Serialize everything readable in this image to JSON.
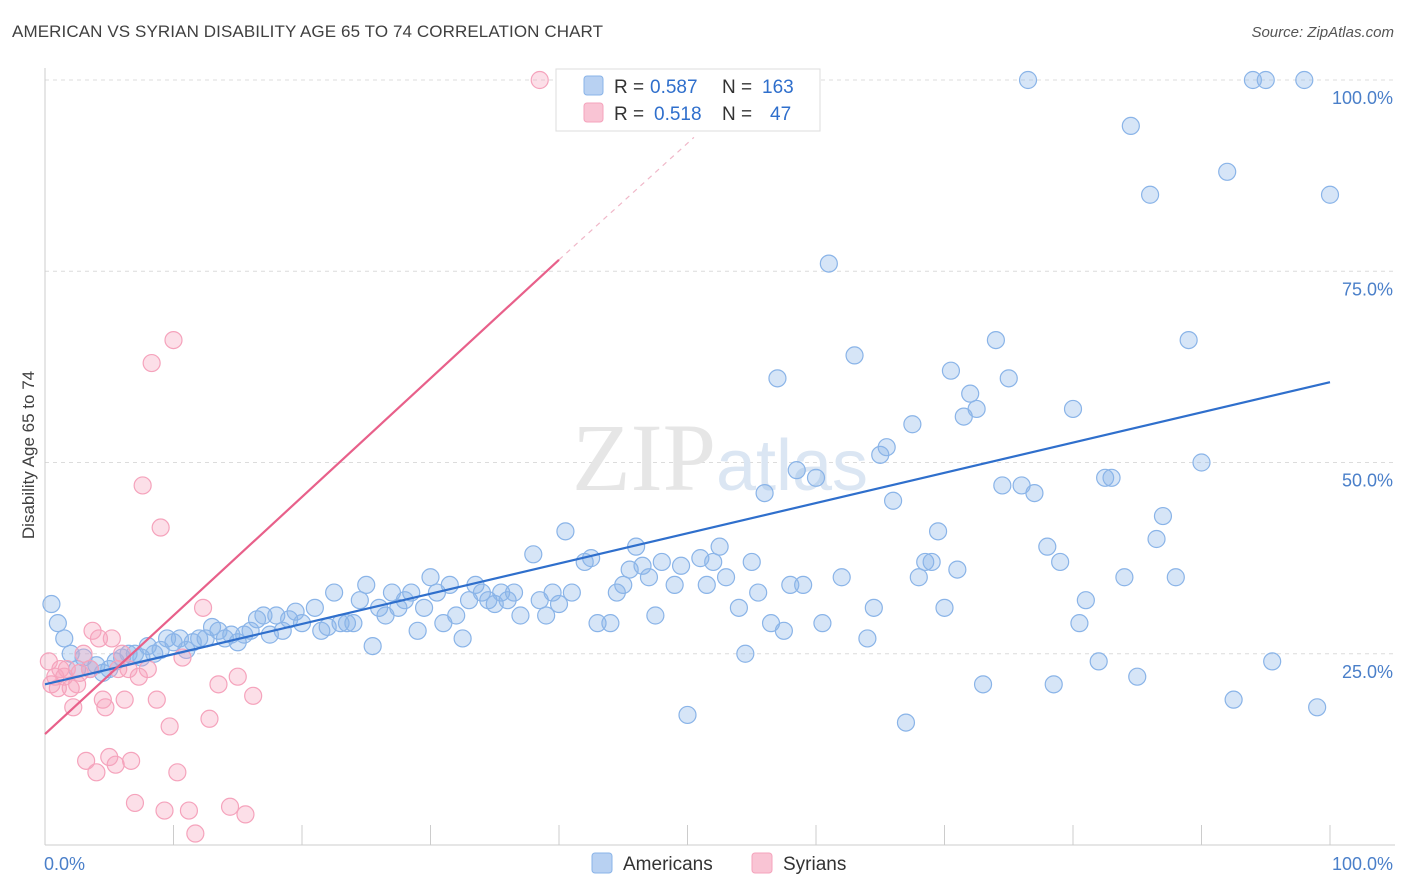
{
  "title": "AMERICAN VS SYRIAN DISABILITY AGE 65 TO 74 CORRELATION CHART",
  "source": "Source: ZipAtlas.com",
  "watermark": "ZIPatlas",
  "chart_data": {
    "type": "scatter",
    "xlabel": "",
    "ylabel": "Disability Age 65 to 74",
    "xlim": [
      0,
      100
    ],
    "ylim": [
      0,
      100
    ],
    "x_tick_labels": [
      "0.0%",
      "100.0%"
    ],
    "y_ticks": [
      {
        "value": 25,
        "label": "25.0%"
      },
      {
        "value": 50,
        "label": "50.0%"
      },
      {
        "value": 75,
        "label": "75.0%"
      },
      {
        "value": 100,
        "label": "100.0%"
      }
    ],
    "grid": true,
    "legend": {
      "placement": "top-center",
      "entries": [
        {
          "r_label": "R =",
          "r_value": "0.587",
          "n_label": "N =",
          "n_value": "163"
        },
        {
          "r_label": "R =",
          "r_value": "0.518",
          "n_label": "N =",
          "n_value": "47"
        }
      ]
    },
    "series": [
      {
        "name": "Americans",
        "color": "#8ab4e8",
        "line_color": "#2f6fcc",
        "trend": {
          "x": [
            0,
            100
          ],
          "y": [
            21,
            60.5
          ]
        },
        "points": [
          [
            0.5,
            31.5
          ],
          [
            1,
            29
          ],
          [
            1.5,
            27
          ],
          [
            2,
            25
          ],
          [
            2.5,
            23
          ],
          [
            3,
            24.5
          ],
          [
            3.5,
            23
          ],
          [
            4,
            23.5
          ],
          [
            4.5,
            22.5
          ],
          [
            5,
            23
          ],
          [
            5.5,
            24
          ],
          [
            6,
            24.5
          ],
          [
            6.5,
            25
          ],
          [
            7,
            25
          ],
          [
            7.5,
            24.5
          ],
          [
            8,
            26
          ],
          [
            8.5,
            25
          ],
          [
            9,
            25.5
          ],
          [
            9.5,
            27
          ],
          [
            10,
            26.5
          ],
          [
            10.5,
            27
          ],
          [
            11,
            25.5
          ],
          [
            11.5,
            26.5
          ],
          [
            12,
            27
          ],
          [
            12.5,
            27
          ],
          [
            13,
            28.5
          ],
          [
            13.5,
            28
          ],
          [
            14,
            27
          ],
          [
            14.5,
            27.5
          ],
          [
            15,
            26.5
          ],
          [
            15.5,
            27.5
          ],
          [
            16,
            28
          ],
          [
            16.5,
            29.5
          ],
          [
            17,
            30
          ],
          [
            17.5,
            27.5
          ],
          [
            18,
            30
          ],
          [
            18.5,
            28
          ],
          [
            19,
            29.5
          ],
          [
            19.5,
            30.5
          ],
          [
            20,
            29
          ],
          [
            21,
            31
          ],
          [
            21.5,
            28
          ],
          [
            22,
            28.5
          ],
          [
            22.5,
            33
          ],
          [
            23,
            29
          ],
          [
            23.5,
            29
          ],
          [
            24,
            29
          ],
          [
            24.5,
            32
          ],
          [
            25,
            34
          ],
          [
            25.5,
            26
          ],
          [
            26,
            31
          ],
          [
            26.5,
            30
          ],
          [
            27,
            33
          ],
          [
            27.5,
            31
          ],
          [
            28,
            32
          ],
          [
            28.5,
            33
          ],
          [
            29,
            28
          ],
          [
            29.5,
            31
          ],
          [
            30,
            35
          ],
          [
            30.5,
            33
          ],
          [
            31,
            29
          ],
          [
            31.5,
            34
          ],
          [
            32,
            30
          ],
          [
            32.5,
            27
          ],
          [
            33,
            32
          ],
          [
            33.5,
            34
          ],
          [
            34,
            33
          ],
          [
            34.5,
            32
          ],
          [
            35,
            31.5
          ],
          [
            35.5,
            33
          ],
          [
            36,
            32
          ],
          [
            36.5,
            33
          ],
          [
            37,
            30
          ],
          [
            38,
            38
          ],
          [
            38.5,
            32
          ],
          [
            39,
            30
          ],
          [
            39.5,
            33
          ],
          [
            40,
            31.5
          ],
          [
            40.5,
            41
          ],
          [
            41,
            33
          ],
          [
            42,
            37
          ],
          [
            42.5,
            37.5
          ],
          [
            43,
            29
          ],
          [
            44,
            29
          ],
          [
            44.5,
            33
          ],
          [
            45,
            34
          ],
          [
            45.5,
            36
          ],
          [
            46,
            39
          ],
          [
            46.5,
            36.5
          ],
          [
            47,
            35
          ],
          [
            47.5,
            30
          ],
          [
            48,
            37
          ],
          [
            49,
            34
          ],
          [
            49.5,
            36.5
          ],
          [
            50,
            17
          ],
          [
            51,
            37.5
          ],
          [
            51.5,
            34
          ],
          [
            52,
            37
          ],
          [
            52.5,
            39
          ],
          [
            53,
            35
          ],
          [
            54,
            31
          ],
          [
            54.5,
            25
          ],
          [
            55,
            37
          ],
          [
            55.5,
            33
          ],
          [
            56,
            46
          ],
          [
            56.5,
            29
          ],
          [
            57,
            61
          ],
          [
            57.5,
            28
          ],
          [
            58,
            34
          ],
          [
            58.5,
            49
          ],
          [
            59,
            34
          ],
          [
            60,
            48
          ],
          [
            60.5,
            29
          ],
          [
            61,
            76
          ],
          [
            62,
            35
          ],
          [
            63,
            64
          ],
          [
            64,
            27
          ],
          [
            64.5,
            31
          ],
          [
            65,
            51
          ],
          [
            65.5,
            52
          ],
          [
            66,
            45
          ],
          [
            67,
            16
          ],
          [
            67.5,
            55
          ],
          [
            68,
            35
          ],
          [
            68.5,
            37
          ],
          [
            69,
            37
          ],
          [
            69.5,
            41
          ],
          [
            70,
            31
          ],
          [
            70.5,
            62
          ],
          [
            71,
            36
          ],
          [
            71.5,
            56
          ],
          [
            72,
            59
          ],
          [
            72.5,
            57
          ],
          [
            73,
            21
          ],
          [
            74,
            66
          ],
          [
            74.5,
            47
          ],
          [
            75,
            61
          ],
          [
            76,
            47
          ],
          [
            76.5,
            100
          ],
          [
            77,
            46
          ],
          [
            78,
            39
          ],
          [
            78.5,
            21
          ],
          [
            79,
            37
          ],
          [
            80,
            57
          ],
          [
            80.5,
            29
          ],
          [
            81,
            32
          ],
          [
            82,
            24
          ],
          [
            82.5,
            48
          ],
          [
            83,
            48
          ],
          [
            84,
            35
          ],
          [
            84.5,
            94
          ],
          [
            85,
            22
          ],
          [
            86,
            85
          ],
          [
            86.5,
            40
          ],
          [
            87,
            43
          ],
          [
            88,
            35
          ],
          [
            89,
            66
          ],
          [
            90,
            50
          ],
          [
            92,
            88
          ],
          [
            92.5,
            19
          ],
          [
            94,
            100
          ],
          [
            95,
            100
          ],
          [
            95.5,
            24
          ],
          [
            98,
            100
          ],
          [
            99,
            18
          ],
          [
            100,
            85
          ]
        ]
      },
      {
        "name": "Syrians",
        "color": "#f5a3bc",
        "line_color": "#e8608a",
        "trend": {
          "x": [
            0,
            40
          ],
          "y": [
            14.5,
            76.5
          ]
        },
        "trend_extension": {
          "x": [
            40,
            50.5
          ],
          "y": [
            76.5,
            92.5
          ]
        },
        "points": [
          [
            0.3,
            24
          ],
          [
            0.5,
            21
          ],
          [
            0.8,
            22
          ],
          [
            1,
            20.5
          ],
          [
            1.2,
            23
          ],
          [
            1.5,
            22
          ],
          [
            1.7,
            23
          ],
          [
            2,
            20.5
          ],
          [
            2.2,
            18
          ],
          [
            2.5,
            21
          ],
          [
            2.7,
            22.5
          ],
          [
            3,
            25
          ],
          [
            3.2,
            11
          ],
          [
            3.5,
            23
          ],
          [
            3.7,
            28
          ],
          [
            4,
            9.5
          ],
          [
            4.2,
            27
          ],
          [
            4.5,
            19
          ],
          [
            4.7,
            18
          ],
          [
            5,
            11.5
          ],
          [
            5.2,
            27
          ],
          [
            5.5,
            10.5
          ],
          [
            5.7,
            23
          ],
          [
            6,
            25
          ],
          [
            6.2,
            19
          ],
          [
            6.5,
            23
          ],
          [
            6.7,
            11
          ],
          [
            7,
            5.5
          ],
          [
            7.3,
            22
          ],
          [
            7.6,
            47
          ],
          [
            8,
            23
          ],
          [
            8.3,
            63
          ],
          [
            8.7,
            19
          ],
          [
            9,
            41.5
          ],
          [
            9.3,
            4.5
          ],
          [
            9.7,
            15.5
          ],
          [
            10,
            66
          ],
          [
            10.3,
            9.5
          ],
          [
            10.7,
            24.5
          ],
          [
            11.2,
            4.5
          ],
          [
            11.7,
            1.5
          ],
          [
            12.3,
            31
          ],
          [
            12.8,
            16.5
          ],
          [
            13.5,
            21
          ],
          [
            14.4,
            5
          ],
          [
            15,
            22
          ],
          [
            15.6,
            4
          ],
          [
            16.2,
            19.5
          ],
          [
            38.5,
            100
          ]
        ]
      }
    ]
  }
}
